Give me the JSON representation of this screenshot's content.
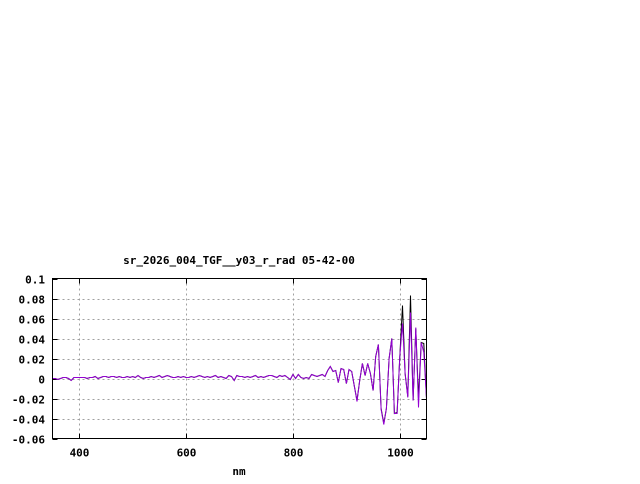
{
  "chart_data": {
    "type": "line",
    "title": "sr_2026_004_TGF__y03_r_rad 05-42-00",
    "xlabel": "nm",
    "ylabel": "",
    "xlim": [
      350,
      1050
    ],
    "ylim": [
      -0.06,
      0.1
    ],
    "xticks": [
      400,
      600,
      800,
      1000
    ],
    "yticks": [
      -0.06,
      -0.04,
      -0.02,
      0,
      0.02,
      0.04,
      0.06,
      0.08,
      0.1
    ],
    "ytick_labels": [
      "-0.06",
      "-0.04",
      "-0.02",
      "0",
      "0.02",
      "0.04",
      "0.06",
      "0.08",
      "0.1"
    ],
    "grid": true,
    "x_start": 350,
    "x_step": 5,
    "series": [
      {
        "color": "#000000",
        "values": [
          0,
          0,
          -0.001,
          0,
          0.001,
          0.001,
          0,
          -0.002,
          0.001,
          0.001,
          0.001,
          0.001,
          0.001,
          0,
          0.001,
          0.001,
          0.002,
          0,
          0.001,
          0.002,
          0.002,
          0.001,
          0.002,
          0.002,
          0.001,
          0.002,
          0.001,
          0.001,
          0.002,
          0.001,
          0.002,
          0.001,
          0.003,
          0.001,
          0,
          0.001,
          0.001,
          0.002,
          0.001,
          0.002,
          0.003,
          0.001,
          0.002,
          0.003,
          0.002,
          0.001,
          0.001,
          0.002,
          0.001,
          0.002,
          0.001,
          0.001,
          0.002,
          0.001,
          0.002,
          0.003,
          0.002,
          0.001,
          0.002,
          0.001,
          0.002,
          0.003,
          0.001,
          0.002,
          0.001,
          0,
          0.003,
          0.002,
          -0.002,
          0.003,
          0.002,
          0.002,
          0.001,
          0.002,
          0.001,
          0.002,
          0.003,
          0.001,
          0.002,
          0.001,
          0.002,
          0.003,
          0.003,
          0.002,
          0.001,
          0.003,
          0.002,
          0.003,
          0.001,
          -0.001,
          0.004,
          0,
          0.004,
          0.001,
          0,
          0.001,
          0,
          0.004,
          0.003,
          0.002,
          0.003,
          0.004,
          0.002,
          0.008,
          0.012,
          0.007,
          0.008,
          -0.004,
          0.01,
          0.009,
          -0.005,
          0.009,
          0.007,
          -0.008,
          -0.022,
          -0.002,
          0.015,
          0.003,
          0.015,
          0.005,
          -0.012,
          0.022,
          0.034,
          -0.03,
          -0.045,
          -0.03,
          0.02,
          0.04,
          -0.035,
          -0.034,
          0.022,
          0.073,
          0.005,
          -0.018,
          0.083,
          -0.022,
          0.05,
          -0.02,
          0.036,
          0.035,
          -0.02
        ]
      },
      {
        "color": "#9400d3",
        "values": [
          0,
          0,
          -0.001,
          0,
          0.001,
          0.001,
          0,
          -0.002,
          0.001,
          0.001,
          0.001,
          0.001,
          0.001,
          0,
          0.001,
          0.001,
          0.002,
          0,
          0.001,
          0.002,
          0.002,
          0.001,
          0.002,
          0.002,
          0.001,
          0.002,
          0.001,
          0.001,
          0.002,
          0.001,
          0.002,
          0.001,
          0.003,
          0.001,
          0,
          0.001,
          0.001,
          0.002,
          0.001,
          0.002,
          0.003,
          0.001,
          0.002,
          0.003,
          0.002,
          0.001,
          0.001,
          0.002,
          0.001,
          0.002,
          0.001,
          0.001,
          0.002,
          0.001,
          0.002,
          0.003,
          0.002,
          0.001,
          0.002,
          0.001,
          0.002,
          0.003,
          0.001,
          0.002,
          0.001,
          0,
          0.003,
          0.002,
          -0.002,
          0.003,
          0.002,
          0.002,
          0.001,
          0.002,
          0.001,
          0.002,
          0.003,
          0.001,
          0.002,
          0.001,
          0.002,
          0.003,
          0.003,
          0.002,
          0.001,
          0.003,
          0.002,
          0.003,
          0.001,
          -0.001,
          0.004,
          0,
          0.004,
          0.001,
          0,
          0.001,
          0,
          0.004,
          0.003,
          0.002,
          0.003,
          0.004,
          0.002,
          0.008,
          0.012,
          0.007,
          0.008,
          -0.004,
          0.01,
          0.009,
          -0.005,
          0.009,
          0.007,
          -0.008,
          -0.023,
          -0.002,
          0.015,
          0.003,
          0.015,
          0.005,
          -0.012,
          0.022,
          0.034,
          -0.031,
          -0.046,
          -0.03,
          0.02,
          0.04,
          -0.035,
          -0.035,
          0.022,
          0.055,
          0.005,
          -0.019,
          0.066,
          -0.022,
          0.051,
          -0.029,
          0.036,
          0.026,
          -0.02
        ]
      }
    ]
  }
}
